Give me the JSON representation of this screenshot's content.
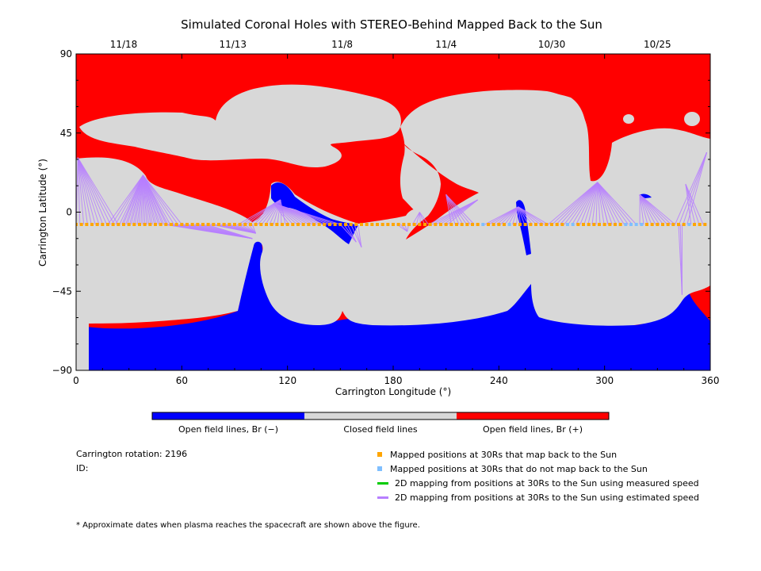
{
  "chart_data": {
    "type": "map",
    "title": "Simulated Coronal Holes with STEREO-Behind Mapped Back to the Sun",
    "xlabel": "Carrington Longitude (°)",
    "ylabel": "Carrington Latitude (°)",
    "xlim": [
      0,
      360
    ],
    "ylim": [
      -90,
      90
    ],
    "xticks": [
      0,
      60,
      120,
      180,
      240,
      300,
      360
    ],
    "yticks": [
      -90,
      -45,
      0,
      45,
      90
    ],
    "top_date_ticks": [
      {
        "lon": 27,
        "label": "11/18"
      },
      {
        "lon": 89,
        "label": "11/13"
      },
      {
        "lon": 151,
        "label": "11/8"
      },
      {
        "lon": 210,
        "label": "11/4"
      },
      {
        "lon": 270,
        "label": "10/30"
      },
      {
        "lon": 330,
        "label": "10/25"
      }
    ],
    "colors": {
      "positive": "#ff0000",
      "negative": "#0000ff",
      "closed": "#d8d8d8",
      "mapped": "#ffa500",
      "unmapped": "#7fbfff",
      "measured": "#00cc00",
      "estimated": "#b77fff"
    },
    "mapped_latitude": -7,
    "footpoint_groups": [
      {
        "from": [
          0,
          52
        ],
        "to": [
          [
            1,
            31
          ],
          [
            38,
            21
          ]
        ]
      },
      {
        "from": [
          18,
          60
        ],
        "to": [
          [
            38,
            21
          ]
        ]
      },
      {
        "from": [
          50,
          100
        ],
        "to": [
          [
            100,
            -15
          ],
          [
            102,
            -12
          ]
        ]
      },
      {
        "from": [
          92,
          150
        ],
        "to": [
          [
            116,
            7
          ],
          [
            112,
            5
          ]
        ]
      },
      {
        "from": [
          150,
          160
        ],
        "to": [
          [
            159,
            -17
          ],
          [
            162,
            -20
          ]
        ]
      },
      {
        "from": [
          182,
          200
        ],
        "to": [
          [
            188,
            -11
          ],
          [
            195,
            0
          ]
        ]
      },
      {
        "from": [
          200,
          226
        ],
        "to": [
          [
            228,
            7
          ],
          [
            210,
            10
          ]
        ]
      },
      {
        "from": [
          232,
          268
        ],
        "to": [
          [
            251,
            3
          ]
        ]
      },
      {
        "from": [
          268,
          302
        ],
        "to": [
          [
            296,
            17
          ]
        ]
      },
      {
        "from": [
          302,
          318
        ],
        "to": [
          [
            296,
            17
          ]
        ]
      },
      {
        "from": [
          320,
          340
        ],
        "to": [
          [
            320,
            10
          ]
        ]
      },
      {
        "from": [
          340,
          356
        ],
        "to": [
          [
            358,
            34
          ],
          [
            346,
            16
          ]
        ]
      },
      {
        "from": [
          342,
          344
        ],
        "to": [
          [
            344,
            -47
          ]
        ]
      }
    ],
    "unmapped_longitudes": [
      230,
      247,
      279,
      282,
      311,
      315,
      318,
      321,
      348
    ]
  },
  "legend": {
    "colorbar_labels": [
      "Open field lines, Br (−)",
      "Closed field lines",
      "Open field lines, Br (+)"
    ],
    "items": [
      {
        "label": "Mapped positions at 30Rs that map back to the Sun",
        "color": "#ffa500"
      },
      {
        "label": "Mapped positions at 30Rs that do not map back to the Sun",
        "color": "#7fbfff"
      },
      {
        "label": "2D mapping from positions at 30Rs to the Sun using measured speed",
        "color": "#00cc00"
      },
      {
        "label": "2D mapping from positions at 30Rs to the Sun using estimated speed",
        "color": "#b77fff"
      }
    ]
  },
  "info": {
    "rotation": "Carrington rotation: 2196",
    "id": "ID:"
  },
  "footnote": "* Approximate dates when plasma reaches the spacecraft are shown above the figure."
}
